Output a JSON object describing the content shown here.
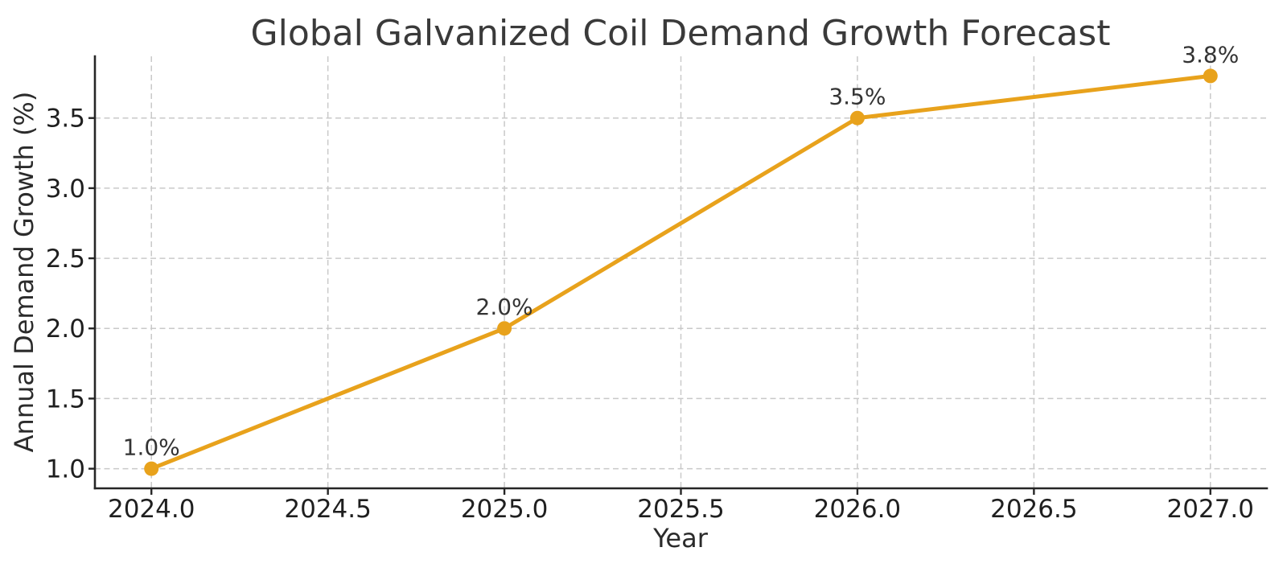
{
  "chart_data": {
    "type": "line",
    "title": "Global Galvanized Coil Demand Growth Forecast",
    "xlabel": "Year",
    "ylabel": "Annual Demand Growth (%)",
    "x": [
      2024,
      2025,
      2026,
      2027
    ],
    "series": [
      {
        "name": "Annual Demand Growth",
        "values": [
          1.0,
          2.0,
          3.5,
          3.8
        ],
        "point_labels": [
          "1.0%",
          "2.0%",
          "3.5%",
          "3.8%"
        ]
      }
    ],
    "xticks": [
      2024.0,
      2024.5,
      2025.0,
      2025.5,
      2026.0,
      2026.5,
      2027.0
    ],
    "xtick_labels": [
      "2024.0",
      "2024.5",
      "2025.0",
      "2025.5",
      "2026.0",
      "2026.5",
      "2027.0"
    ],
    "yticks": [
      1.0,
      1.5,
      2.0,
      2.5,
      3.0,
      3.5
    ],
    "ytick_labels": [
      "1.0",
      "1.5",
      "2.0",
      "2.5",
      "3.0",
      "3.5"
    ],
    "xlim": [
      2023.84,
      2027.16
    ],
    "ylim": [
      0.86,
      3.94
    ],
    "grid": true,
    "grid_style": "dashed",
    "legend": "none",
    "colors": {
      "line": "#E8A21C",
      "marker": "#E8A21C",
      "grid": "#C9C9C9",
      "spine": "#262626",
      "title_text": "#3A3A3A",
      "tick_text": "#1F1F1F",
      "background": "#FFFFFF"
    }
  }
}
